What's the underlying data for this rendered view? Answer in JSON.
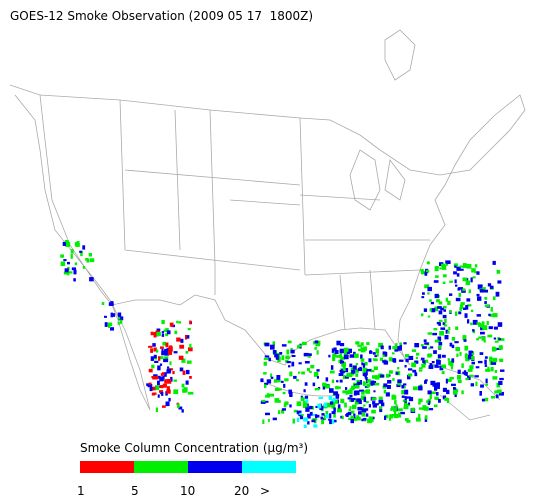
{
  "title": "GOES-12 Smoke Observation (2009 05 17  1800Z)",
  "legend": {
    "label": "Smoke Column Concentration (μg/m³)",
    "colors": [
      "#ff0000",
      "#00ee00",
      "#0000ee",
      "#00ffff"
    ],
    "ticks": [
      "1",
      "5",
      "10",
      "20",
      ">"
    ]
  }
}
